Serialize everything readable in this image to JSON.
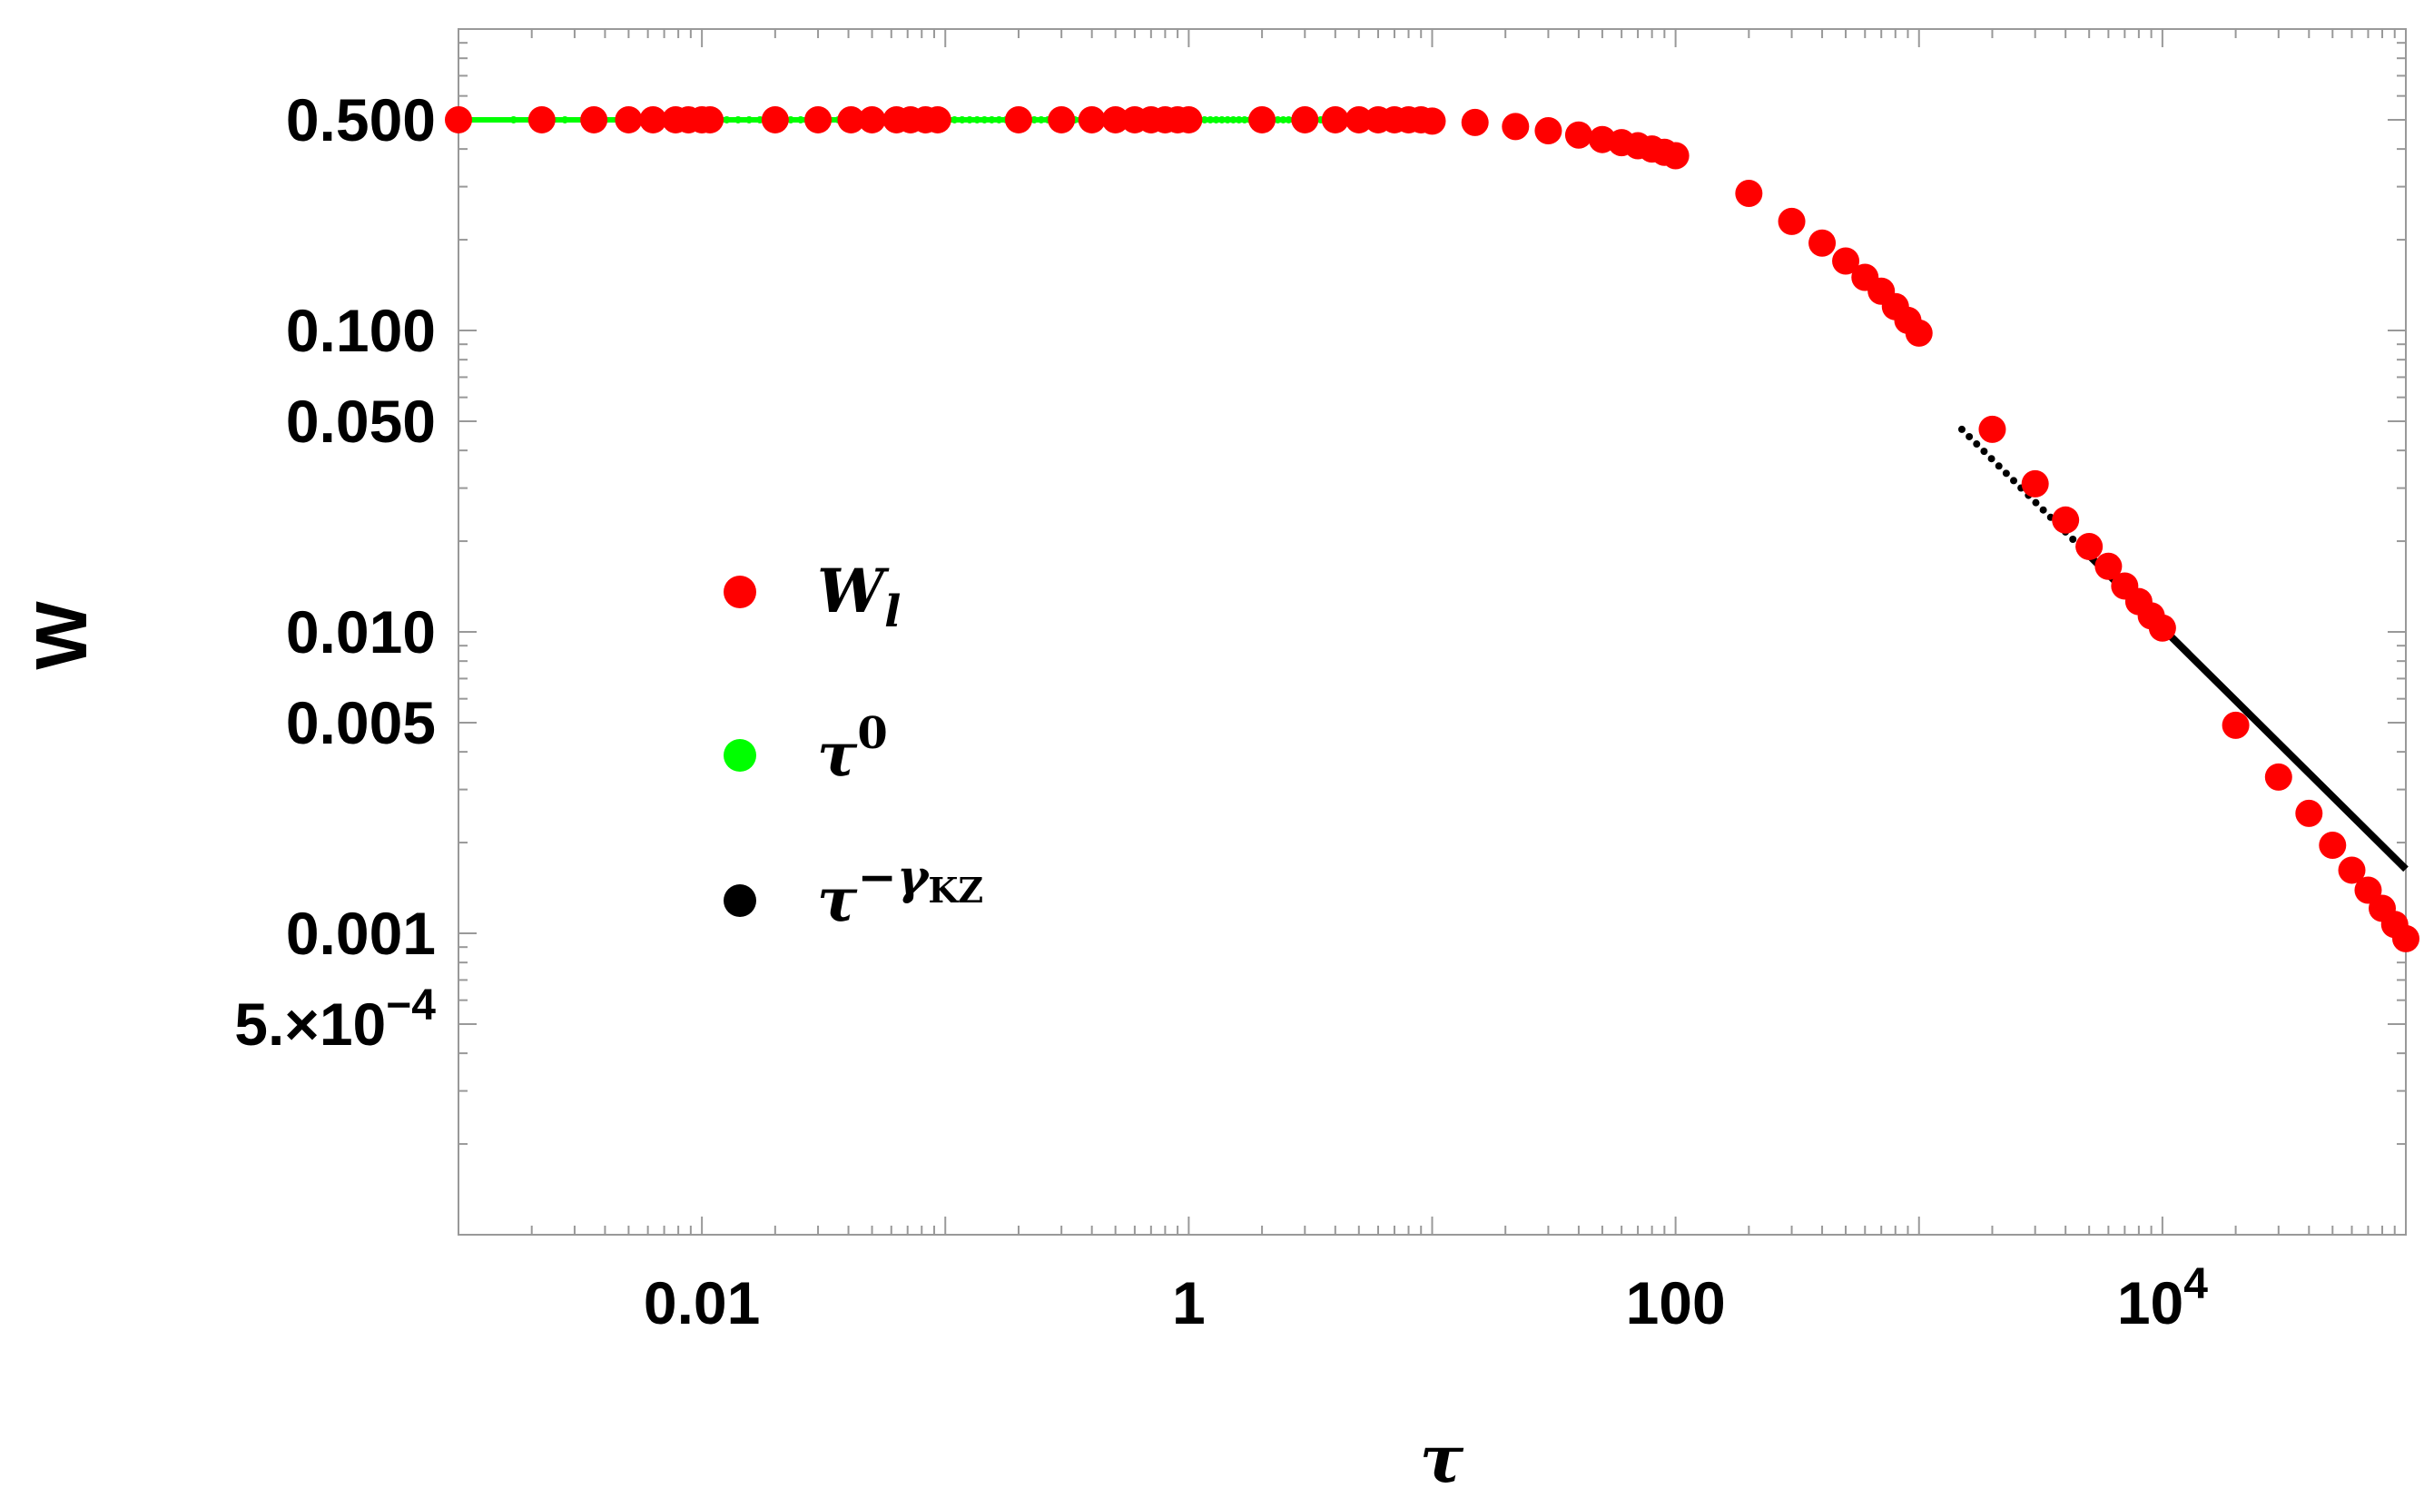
{
  "chart_data": {
    "type": "scatter",
    "title": "",
    "xlabel": "τ",
    "ylabel": "W",
    "xscale": "log",
    "yscale": "log",
    "xlim": [
      0.001,
      100000
    ],
    "ylim": [
      0.0001,
      1.0
    ],
    "x_ticks": [
      {
        "value": 0.01,
        "label": "0.01"
      },
      {
        "value": 1,
        "label": "1"
      },
      {
        "value": 100,
        "label": "100"
      },
      {
        "value": 10000,
        "base": "10",
        "exp": "4"
      }
    ],
    "y_ticks": [
      {
        "value": 0.5,
        "label": "0.500"
      },
      {
        "value": 0.1,
        "label": "0.100"
      },
      {
        "value": 0.05,
        "label": "0.050"
      },
      {
        "value": 0.01,
        "label": "0.010"
      },
      {
        "value": 0.005,
        "label": "0.005"
      },
      {
        "value": 0.001,
        "label": "0.001"
      },
      {
        "value": 0.0005,
        "mant": "5.",
        "times": "×",
        "base": "10",
        "exp": "−4"
      }
    ],
    "grid": false,
    "legend_position": "center-left",
    "series": [
      {
        "name": "W",
        "subscript": "l",
        "color": "#ff0000",
        "style": "markers",
        "x": [
          0.001,
          0.0022,
          0.0036,
          0.005,
          0.0063,
          0.0078,
          0.0088,
          0.01,
          0.0108,
          0.02,
          0.03,
          0.041,
          0.05,
          0.063,
          0.072,
          0.083,
          0.093,
          0.2,
          0.3,
          0.4,
          0.5,
          0.6,
          0.7,
          0.8,
          0.9,
          1.0,
          2.0,
          3.0,
          4.0,
          5.0,
          6.0,
          7.0,
          8.0,
          9.0,
          10.0,
          15.0,
          22.0,
          30.0,
          40.0,
          50.0,
          60.0,
          70.0,
          80.0,
          90.0,
          100.0,
          200.0,
          300.0,
          400.0,
          500.0,
          600.0,
          700.0,
          800.0,
          900.0,
          1000.0,
          2000.0,
          3000.0,
          4000.0,
          5000.0,
          6000.0,
          7000.0,
          8000.0,
          9000.0,
          10000.0,
          20000.0,
          30000.0,
          40000.0,
          50000.0,
          60000.0,
          70000.0,
          80000.0,
          90000.0,
          100000.0
        ],
        "y": [
          0.5,
          0.5,
          0.5,
          0.5,
          0.5,
          0.5,
          0.5,
          0.5,
          0.5,
          0.5,
          0.5,
          0.5,
          0.5,
          0.5,
          0.5,
          0.5,
          0.5,
          0.5,
          0.5,
          0.5,
          0.5,
          0.5,
          0.5,
          0.5,
          0.5,
          0.5,
          0.5,
          0.5,
          0.5,
          0.5,
          0.5,
          0.5,
          0.5,
          0.5,
          0.495,
          0.49,
          0.475,
          0.46,
          0.445,
          0.43,
          0.42,
          0.41,
          0.4,
          0.39,
          0.38,
          0.285,
          0.23,
          0.195,
          0.17,
          0.15,
          0.135,
          0.12,
          0.108,
          0.098,
          0.047,
          0.031,
          0.0235,
          0.0192,
          0.0165,
          0.0142,
          0.0126,
          0.0113,
          0.0103,
          0.0049,
          0.0033,
          0.0025,
          0.00196,
          0.00162,
          0.00139,
          0.00121,
          0.00107,
          0.00096
        ]
      },
      {
        "name": "τ",
        "superscript": "0",
        "color": "#00ff00",
        "style": "line",
        "x_range": [
          0.001,
          10
        ],
        "value": 0.5
      },
      {
        "name": "τ",
        "superscript_main": "−γ",
        "superscript_sub": "KZ",
        "color": "#000000",
        "style": "line",
        "x_range": [
          1500,
          100000
        ],
        "value_at_10000": 0.0103,
        "slope": -0.8
      }
    ]
  }
}
